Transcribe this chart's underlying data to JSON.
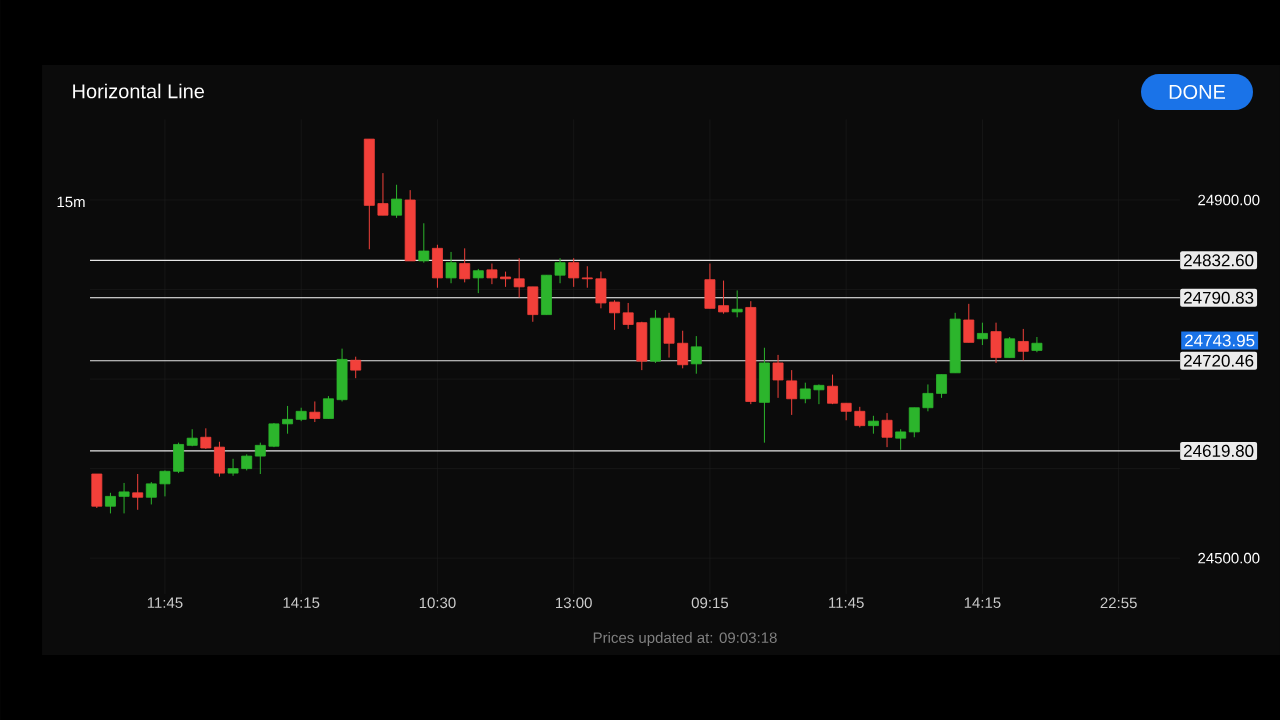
{
  "chart_data": {
    "type": "candlestick",
    "title": "Horizontal Line",
    "categories": [
      null,
      null,
      null,
      null,
      null,
      "11:45",
      null,
      null,
      null,
      null,
      null,
      null,
      null,
      null,
      null,
      "14:15",
      null,
      null,
      null,
      null,
      null,
      null,
      null,
      null,
      null,
      "10:30",
      null,
      null,
      null,
      null,
      null,
      null,
      null,
      null,
      null,
      "13:00",
      null,
      null,
      null,
      null,
      null,
      null,
      null,
      null,
      null,
      "09:15",
      null,
      null,
      null,
      null,
      null,
      null,
      null,
      null,
      null,
      "11:45",
      null,
      null,
      null,
      null,
      null,
      null,
      null,
      null,
      null,
      "14:15",
      null,
      null,
      null,
      null,
      null,
      null,
      null,
      null,
      null,
      "22:55",
      null,
      null,
      null,
      null
    ],
    "ohlc": [
      [
        24594,
        24594,
        24556,
        24558
      ],
      [
        24558,
        24573,
        24550,
        24569
      ],
      [
        24569,
        24584,
        24550,
        24574
      ],
      [
        24573,
        24594,
        24554,
        24568
      ],
      [
        24568,
        24585,
        24560,
        24583
      ],
      [
        24583,
        24598,
        24569,
        24597
      ],
      [
        24597,
        24629,
        24595,
        24627
      ],
      [
        24626,
        24644,
        24625,
        24634
      ],
      [
        24635,
        24645,
        24622,
        24623
      ],
      [
        24624,
        24630,
        24591,
        24595
      ],
      [
        24595,
        24611,
        24592,
        24600
      ],
      [
        24600,
        24616,
        24598,
        24614
      ],
      [
        24614,
        24629,
        24594,
        24626
      ],
      [
        24625,
        24651,
        24624,
        24650
      ],
      [
        24650,
        24670,
        24639,
        24655
      ],
      [
        24655,
        24668,
        24653,
        24664
      ],
      [
        24663,
        24675,
        24652,
        24656
      ],
      [
        24656,
        24681,
        24656,
        24678
      ],
      [
        24677,
        24734,
        24675,
        24722
      ],
      [
        24721,
        24725,
        24701,
        24710
      ],
      [
        24968,
        24968,
        24845,
        24894
      ],
      [
        24896,
        24930,
        24883,
        24883
      ],
      [
        24883,
        24917,
        24880,
        24901
      ],
      [
        24900,
        24911,
        24832,
        24832
      ],
      [
        24832,
        24874,
        24830,
        24843
      ],
      [
        24846,
        24850,
        24802,
        24813
      ],
      [
        24813,
        24842,
        24807,
        24830
      ],
      [
        24829,
        24846,
        24808,
        24812
      ],
      [
        24813,
        24823,
        24796,
        24821
      ],
      [
        24822,
        24829,
        24806,
        24813
      ],
      [
        24814,
        24820,
        24803,
        24812
      ],
      [
        24812,
        24835,
        24791,
        24803
      ],
      [
        24803,
        24803,
        24764,
        24772
      ],
      [
        24772,
        24816,
        24772,
        24816
      ],
      [
        24816,
        24835,
        24807,
        24830
      ],
      [
        24830,
        24835,
        24803,
        24813
      ],
      [
        24813,
        24826,
        24802,
        24812
      ],
      [
        24812,
        24820,
        24779,
        24785
      ],
      [
        24786,
        24788,
        24755,
        24774
      ],
      [
        24774,
        24785,
        24756,
        24761
      ],
      [
        24763,
        24764,
        24710,
        24720
      ],
      [
        24720,
        24777,
        24718,
        24768
      ],
      [
        24768,
        24774,
        24724,
        24740
      ],
      [
        24740,
        24754,
        24712,
        24716
      ],
      [
        24717,
        24748,
        24706,
        24736
      ],
      [
        24811,
        24829,
        24779,
        24779
      ],
      [
        24782,
        24810,
        24773,
        24775
      ],
      [
        24775,
        24799,
        24769,
        24778
      ],
      [
        24780,
        24787,
        24672,
        24675
      ],
      [
        24674,
        24735,
        24629,
        24718
      ],
      [
        24718,
        24727,
        24679,
        24699
      ],
      [
        24698,
        24710,
        24660,
        24678
      ],
      [
        24678,
        24696,
        24673,
        24689
      ],
      [
        24688,
        24694,
        24672,
        24693
      ],
      [
        24692,
        24705,
        24672,
        24673
      ],
      [
        24673,
        24673,
        24654,
        24664
      ],
      [
        24664,
        24669,
        24646,
        24648
      ],
      [
        24648,
        24659,
        24639,
        24653
      ],
      [
        24654,
        24662,
        24624,
        24635
      ],
      [
        24634,
        24644,
        24621,
        24641
      ],
      [
        24641,
        24668,
        24635,
        24668
      ],
      [
        24668,
        24694,
        24664,
        24684
      ],
      [
        24684,
        24705,
        24679,
        24705
      ],
      [
        24707,
        24774,
        24707,
        24767
      ],
      [
        24766,
        24784,
        24741,
        24741
      ],
      [
        24745,
        24763,
        24738,
        24751
      ],
      [
        24753,
        24763,
        24718,
        24724
      ],
      [
        24724,
        24747,
        24724,
        24745
      ],
      [
        24742,
        24756,
        24721,
        24731
      ],
      [
        24732,
        24747,
        24730,
        24740
      ],
      null,
      null,
      null,
      null,
      null,
      null,
      null,
      null,
      null,
      null
    ],
    "ylim": [
      24460,
      24990
    ],
    "yticks": [
      {
        "value": 24500,
        "label": "24500.00"
      },
      {
        "value": 24600,
        "label": null
      },
      {
        "value": 24700,
        "label": null
      },
      {
        "value": 24800,
        "label": null
      },
      {
        "value": 24900,
        "label": "24900.00"
      }
    ],
    "grid": true,
    "ref_lines": [
      {
        "axis": "y",
        "value": 24832.6,
        "label": "24832.60",
        "color": "#e6e6e6"
      },
      {
        "axis": "y",
        "value": 24790.83,
        "label": "24790.83",
        "color": "#ffffff"
      },
      {
        "axis": "y",
        "value": 24720.46,
        "label": "24720.46",
        "color": "#e6e6e6"
      },
      {
        "axis": "y",
        "value": 24619.8,
        "label": "24619.80",
        "color": "#e6e6e6"
      }
    ],
    "annotations": [
      "Prices updated at:  09:03:18",
      "15m",
      "DONE",
      "24743.95"
    ]
  }
}
